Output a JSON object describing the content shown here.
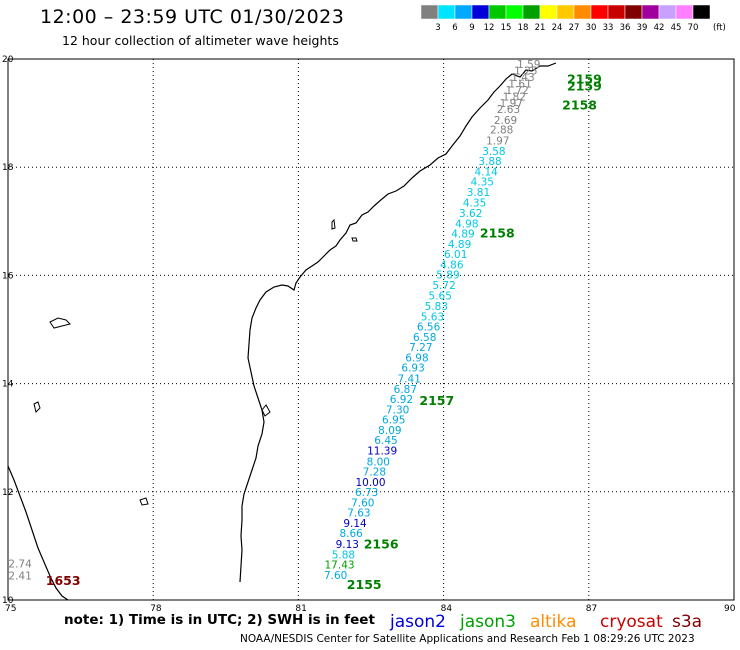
{
  "title": "12:00 – 23:59 UTC 01/30/2023",
  "subtitle": "12 hour collection of altimeter wave heights",
  "colorbar": {
    "colors": [
      "#808080",
      "#00e5ff",
      "#00a8ff",
      "#0000d8",
      "#00c800",
      "#00ff00",
      "#00a000",
      "#ffff00",
      "#ffc800",
      "#ff8c00",
      "#ff0000",
      "#c80000",
      "#800000",
      "#a000a0",
      "#c8a0ff",
      "#ff80ff",
      "#000000"
    ],
    "labels": [
      "3",
      "6",
      "9",
      "12",
      "15",
      "18",
      "21",
      "24",
      "27",
      "30",
      "33",
      "36",
      "39",
      "42",
      "45",
      "70"
    ],
    "unit": "(ft)"
  },
  "axes": {
    "lon_ticks": [
      "75",
      "78",
      "81",
      "84",
      "87",
      "90"
    ],
    "lat_ticks": [
      "20",
      "18",
      "16",
      "14",
      "12",
      "10"
    ]
  },
  "note": "note: 1) Time is in UTC; 2) SWH is in feet",
  "legend": [
    {
      "name": "jason2",
      "color": "#0000d8"
    },
    {
      "name": "jason3",
      "color": "#00a000"
    },
    {
      "name": "altika",
      "color": "#ff8c00"
    },
    {
      "name": "cryosat",
      "color": "#c80000"
    },
    {
      "name": "s3a",
      "color": "#800000"
    }
  ],
  "footer": "NOAA/NESDIS Center for Satellite Applications and Research   Feb  1 08:29:26 UTC 2023",
  "track_labels": [
    {
      "text": "2159",
      "lon": 86.55,
      "lat": 19.55,
      "color": "#008000"
    },
    {
      "text": "2159",
      "lon": 86.55,
      "lat": 19.42,
      "color": "#008000"
    },
    {
      "text": "2158",
      "lon": 86.45,
      "lat": 19.07,
      "color": "#008000"
    },
    {
      "text": "2158",
      "lon": 84.75,
      "lat": 16.7,
      "color": "#008000"
    },
    {
      "text": "2157",
      "lon": 83.5,
      "lat": 13.6,
      "color": "#008000"
    },
    {
      "text": "2156",
      "lon": 82.35,
      "lat": 10.95,
      "color": "#008000"
    },
    {
      "text": "2155",
      "lon": 82.0,
      "lat": 10.2,
      "color": "#008000"
    },
    {
      "text": "1653",
      "lon": 75.78,
      "lat": 10.28,
      "color": "#800000"
    }
  ],
  "obs": [
    {
      "t": "1.59",
      "lon": 85.76,
      "lat": 19.83,
      "c": "#808080"
    },
    {
      "t": "1.25",
      "lon": 85.7,
      "lat": 19.71,
      "c": "#808080"
    },
    {
      "t": "1.43",
      "lon": 85.64,
      "lat": 19.59,
      "c": "#808080"
    },
    {
      "t": "1.61",
      "lon": 85.58,
      "lat": 19.47,
      "c": "#808080"
    },
    {
      "t": "1.72",
      "lon": 85.52,
      "lat": 19.35,
      "c": "#808080"
    },
    {
      "t": "1.82",
      "lon": 85.46,
      "lat": 19.23,
      "c": "#808080"
    },
    {
      "t": "1.97",
      "lon": 85.4,
      "lat": 19.11,
      "c": "#808080"
    },
    {
      "t": "2.63",
      "lon": 85.34,
      "lat": 19.0,
      "c": "#808080"
    },
    {
      "t": "2.69",
      "lon": 85.28,
      "lat": 18.8,
      "c": "#808080"
    },
    {
      "t": "2.88",
      "lon": 85.2,
      "lat": 18.62,
      "c": "#808080"
    },
    {
      "t": "1.97",
      "lon": 85.12,
      "lat": 18.42,
      "c": "#808080"
    },
    {
      "t": "3.58",
      "lon": 85.04,
      "lat": 18.23,
      "c": "#00c8e6"
    },
    {
      "t": "3.88",
      "lon": 84.96,
      "lat": 18.04,
      "c": "#00c8e6"
    },
    {
      "t": "4.14",
      "lon": 84.88,
      "lat": 17.85,
      "c": "#00c8e6"
    },
    {
      "t": "4.35",
      "lon": 84.8,
      "lat": 17.66,
      "c": "#00c8e6"
    },
    {
      "t": "3.81",
      "lon": 84.72,
      "lat": 17.47,
      "c": "#00c8e6"
    },
    {
      "t": "4.35",
      "lon": 84.64,
      "lat": 17.27,
      "c": "#00c8e6"
    },
    {
      "t": "3.62",
      "lon": 84.56,
      "lat": 17.08,
      "c": "#00c8e6"
    },
    {
      "t": "4.98",
      "lon": 84.48,
      "lat": 16.89,
      "c": "#00c8e6"
    },
    {
      "t": "4.89",
      "lon": 84.4,
      "lat": 16.7,
      "c": "#00c8e6"
    },
    {
      "t": "4.89",
      "lon": 84.33,
      "lat": 16.51,
      "c": "#00c8e6"
    },
    {
      "t": "6.01",
      "lon": 84.25,
      "lat": 16.32,
      "c": "#00c8e6"
    },
    {
      "t": "4.86",
      "lon": 84.17,
      "lat": 16.13,
      "c": "#00c8e6"
    },
    {
      "t": "5.89",
      "lon": 84.09,
      "lat": 15.94,
      "c": "#00c8e6"
    },
    {
      "t": "5.72",
      "lon": 84.01,
      "lat": 15.75,
      "c": "#00c8e6"
    },
    {
      "t": "5.65",
      "lon": 83.93,
      "lat": 15.55,
      "c": "#00c8e6"
    },
    {
      "t": "5.83",
      "lon": 83.85,
      "lat": 15.36,
      "c": "#00c8e6"
    },
    {
      "t": "5.63",
      "lon": 83.77,
      "lat": 15.17,
      "c": "#00c8e6"
    },
    {
      "t": "6.56",
      "lon": 83.69,
      "lat": 14.98,
      "c": "#00a8e0"
    },
    {
      "t": "6.58",
      "lon": 83.61,
      "lat": 14.79,
      "c": "#00a8e0"
    },
    {
      "t": "7.27",
      "lon": 83.53,
      "lat": 14.6,
      "c": "#00a8e0"
    },
    {
      "t": "6.98",
      "lon": 83.45,
      "lat": 14.41,
      "c": "#00a8e0"
    },
    {
      "t": "6.93",
      "lon": 83.37,
      "lat": 14.22,
      "c": "#00a8e0"
    },
    {
      "t": "7.41",
      "lon": 83.29,
      "lat": 14.02,
      "c": "#00a8e0"
    },
    {
      "t": "6.87",
      "lon": 83.21,
      "lat": 13.83,
      "c": "#00a8e0"
    },
    {
      "t": "6.92",
      "lon": 83.13,
      "lat": 13.64,
      "c": "#00a8e0"
    },
    {
      "t": "7.30",
      "lon": 83.05,
      "lat": 13.45,
      "c": "#00a8e0"
    },
    {
      "t": "6.95",
      "lon": 82.97,
      "lat": 13.26,
      "c": "#00a8e0"
    },
    {
      "t": "8.09",
      "lon": 82.89,
      "lat": 13.07,
      "c": "#00a8e0"
    },
    {
      "t": "6.45",
      "lon": 82.81,
      "lat": 12.88,
      "c": "#00a8e0"
    },
    {
      "t": "11.39",
      "lon": 82.73,
      "lat": 12.69,
      "c": "#0000c8"
    },
    {
      "t": "8.00",
      "lon": 82.65,
      "lat": 12.49,
      "c": "#00a8e0"
    },
    {
      "t": "7.28",
      "lon": 82.57,
      "lat": 12.3,
      "c": "#00a8e0"
    },
    {
      "t": "10.00",
      "lon": 82.49,
      "lat": 12.11,
      "c": "#0000c8"
    },
    {
      "t": "6.73",
      "lon": 82.41,
      "lat": 11.92,
      "c": "#00a8e0"
    },
    {
      "t": "7.60",
      "lon": 82.33,
      "lat": 11.73,
      "c": "#00a8e0"
    },
    {
      "t": "7.63",
      "lon": 82.25,
      "lat": 11.54,
      "c": "#00a8e0"
    },
    {
      "t": "9.14",
      "lon": 82.17,
      "lat": 11.35,
      "c": "#0000c8"
    },
    {
      "t": "8.66",
      "lon": 82.09,
      "lat": 11.16,
      "c": "#00a8e0"
    },
    {
      "t": "9.13",
      "lon": 82.01,
      "lat": 10.96,
      "c": "#0000c8"
    },
    {
      "t": "5.88",
      "lon": 81.93,
      "lat": 10.77,
      "c": "#00c8e6"
    },
    {
      "t": "17.43",
      "lon": 81.85,
      "lat": 10.58,
      "c": "#00a000"
    },
    {
      "t": "7.60",
      "lon": 81.77,
      "lat": 10.39,
      "c": "#00a8e0"
    },
    {
      "t": "2.74",
      "lon": 75.25,
      "lat": 10.6,
      "c": "#808080"
    },
    {
      "t": "2.41",
      "lon": 75.25,
      "lat": 10.38,
      "c": "#808080"
    }
  ]
}
